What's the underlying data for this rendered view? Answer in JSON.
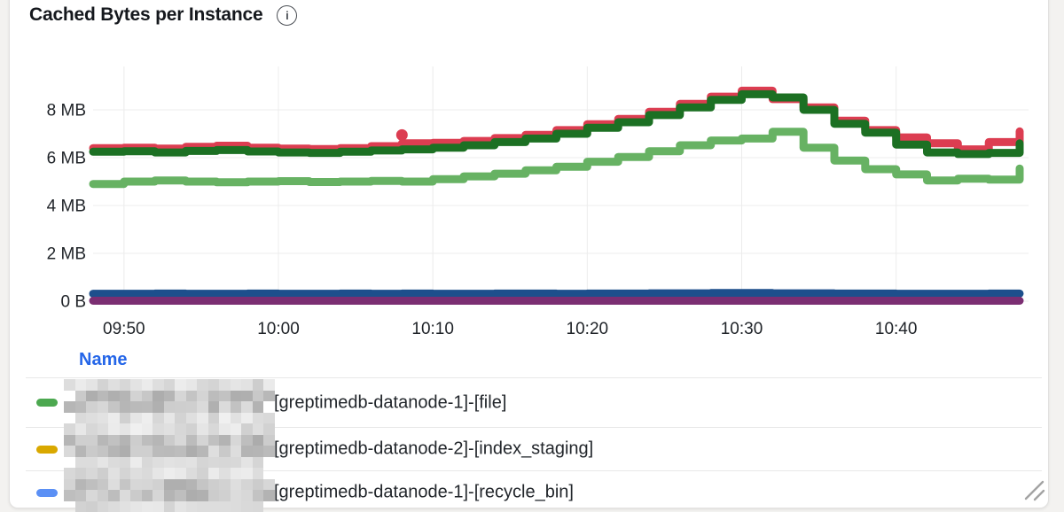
{
  "panel": {
    "title": "Cached Bytes per Instance",
    "info_icon_glyph": "i"
  },
  "chart_data": {
    "type": "line",
    "step": true,
    "title": "Cached Bytes per Instance",
    "unit": "MB",
    "xlabel": "",
    "ylabel": "",
    "grid": true,
    "x_range": [
      "09:48",
      "10:48"
    ],
    "x_ticks": [
      "09:50",
      "10:00",
      "10:10",
      "10:20",
      "10:30",
      "10:40"
    ],
    "y_ticks": [
      {
        "label": "0 B",
        "value": 0
      },
      {
        "label": "2 MB",
        "value": 2
      },
      {
        "label": "4 MB",
        "value": 4
      },
      {
        "label": "6 MB",
        "value": 6
      },
      {
        "label": "8 MB",
        "value": 8
      }
    ],
    "ylim": [
      0,
      9.8
    ],
    "x": [
      "09:48",
      "09:50",
      "09:52",
      "09:54",
      "09:56",
      "09:58",
      "10:00",
      "10:02",
      "10:04",
      "10:06",
      "10:08",
      "10:10",
      "10:12",
      "10:14",
      "10:16",
      "10:18",
      "10:20",
      "10:22",
      "10:24",
      "10:26",
      "10:28",
      "10:30",
      "10:32",
      "10:34",
      "10:36",
      "10:38",
      "10:40",
      "10:42",
      "10:44",
      "10:46",
      "10:48"
    ],
    "series": [
      {
        "name": "series-red",
        "color": "#dc3d51",
        "values": [
          6.4,
          6.42,
          6.38,
          6.45,
          6.5,
          6.42,
          6.38,
          6.36,
          6.4,
          6.48,
          6.6,
          6.62,
          6.7,
          6.82,
          6.95,
          7.15,
          7.4,
          7.62,
          7.92,
          8.25,
          8.55,
          8.8,
          8.45,
          8.1,
          7.55,
          7.15,
          6.85,
          6.6,
          6.35,
          6.65,
          7.1
        ]
      },
      {
        "name": "series-dark-green",
        "color": "#1c7023",
        "values": [
          6.25,
          6.27,
          6.22,
          6.28,
          6.32,
          6.26,
          6.22,
          6.2,
          6.25,
          6.3,
          6.35,
          6.42,
          6.52,
          6.65,
          6.8,
          7.0,
          7.25,
          7.48,
          7.78,
          8.1,
          8.42,
          8.65,
          8.52,
          8.0,
          7.42,
          7.05,
          6.55,
          6.22,
          6.15,
          6.2,
          6.6
        ]
      },
      {
        "name": "series-light-green",
        "color": "#67b263",
        "values": [
          4.9,
          5.0,
          5.05,
          5.0,
          4.97,
          5.0,
          5.02,
          4.98,
          5.0,
          5.03,
          5.0,
          5.1,
          5.22,
          5.33,
          5.47,
          5.62,
          5.83,
          6.03,
          6.27,
          6.52,
          6.72,
          6.8,
          7.08,
          6.42,
          5.88,
          5.52,
          5.3,
          5.05,
          5.12,
          5.08,
          5.55
        ]
      },
      {
        "name": "series-navy-blue",
        "color": "#1d4f8c",
        "values": [
          0.31,
          0.31,
          0.32,
          0.31,
          0.31,
          0.32,
          0.31,
          0.31,
          0.32,
          0.31,
          0.32,
          0.31,
          0.31,
          0.32,
          0.32,
          0.31,
          0.32,
          0.32,
          0.33,
          0.33,
          0.34,
          0.34,
          0.33,
          0.33,
          0.32,
          0.32,
          0.31,
          0.31,
          0.31,
          0.32,
          0.32
        ]
      },
      {
        "name": "series-purple",
        "color": "#7b2e72",
        "values": [
          0.02,
          0.02,
          0.02,
          0.02,
          0.02,
          0.02,
          0.02,
          0.02,
          0.02,
          0.02,
          0.02,
          0.02,
          0.02,
          0.02,
          0.02,
          0.02,
          0.02,
          0.02,
          0.02,
          0.02,
          0.02,
          0.02,
          0.02,
          0.02,
          0.02,
          0.02,
          0.02,
          0.02,
          0.02,
          0.02,
          0.02
        ]
      }
    ],
    "outliers": [
      {
        "series": "series-red",
        "x": "10:08",
        "value": 6.95,
        "color": "#dc3d51"
      }
    ],
    "legend_position": "bottom-table"
  },
  "legend": {
    "header": "Name",
    "rows": [
      {
        "marker_color": "#4ca850",
        "redacted_prefix": true,
        "label": "[greptimedb-datanode-1]-[file]"
      },
      {
        "marker_color": "#d9a800",
        "redacted_prefix": true,
        "label": "[greptimedb-datanode-2]-[index_staging]"
      },
      {
        "marker_color": "#5b90f5",
        "redacted_prefix": true,
        "label": "[greptimedb-datanode-1]-[recycle_bin]"
      }
    ]
  },
  "colors": {
    "accent_blue": "#2566e8",
    "grid": "#ececec",
    "axis_text": "#202429",
    "separator": "#e8e8e8",
    "panel_border": "#e2e1e0"
  }
}
